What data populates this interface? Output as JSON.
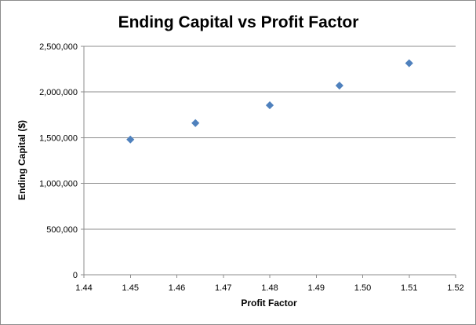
{
  "chart_data": {
    "type": "scatter",
    "title": "Ending Capital vs Profit Factor",
    "xlabel": "Profit Factor",
    "ylabel": "Ending Capital ($)",
    "xlim": [
      1.44,
      1.52
    ],
    "ylim": [
      0,
      2500000
    ],
    "x_ticks": [
      1.44,
      1.45,
      1.46,
      1.47,
      1.48,
      1.49,
      1.5,
      1.51,
      1.52
    ],
    "x_tick_labels": [
      "1.44",
      "1.45",
      "1.46",
      "1.47",
      "1.48",
      "1.49",
      "1.50",
      "1.51",
      "1.52"
    ],
    "y_ticks": [
      0,
      500000,
      1000000,
      1500000,
      2000000,
      2500000
    ],
    "y_tick_labels": [
      "0",
      "500,000",
      "1,000,000",
      "1,500,000",
      "2,000,000",
      "2,500,000"
    ],
    "grid": "horizontal major gridlines",
    "legend": "none",
    "marker": "diamond",
    "series": [
      {
        "color": "#4f81bd",
        "points": [
          {
            "x": 1.45,
            "y": 1480000
          },
          {
            "x": 1.464,
            "y": 1660000
          },
          {
            "x": 1.48,
            "y": 1855000
          },
          {
            "x": 1.495,
            "y": 2070000
          },
          {
            "x": 1.51,
            "y": 2315000
          }
        ]
      }
    ]
  }
}
